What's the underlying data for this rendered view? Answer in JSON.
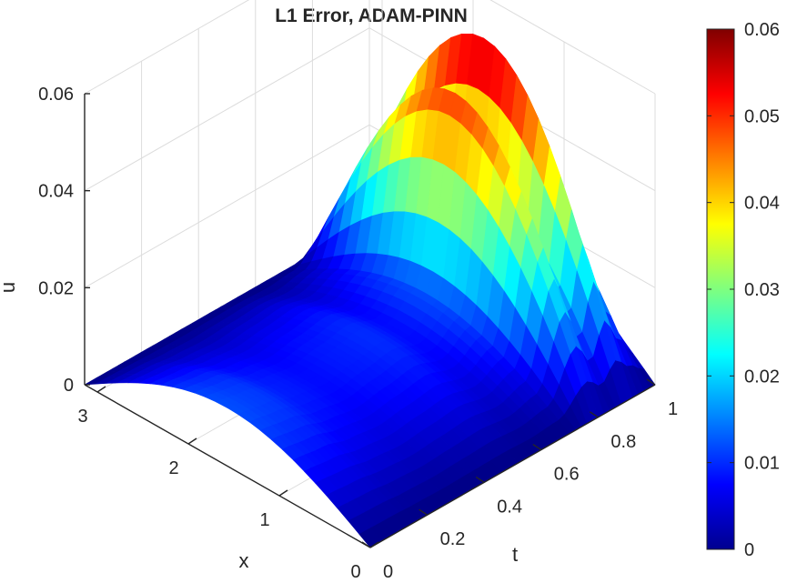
{
  "chart_data": {
    "type": "surface",
    "title": "L1 Error, ADAM-PINN",
    "xlabel": "t",
    "ylabel": "x",
    "zlabel": "u",
    "t_range": [
      0,
      1
    ],
    "x_range": [
      0,
      3.14
    ],
    "zlim": [
      0,
      0.06
    ],
    "t_ticks": [
      "0",
      "0.2",
      "0.4",
      "0.6",
      "0.8",
      "1"
    ],
    "x_ticks": [
      "0",
      "1",
      "2",
      "3"
    ],
    "z_ticks": [
      "0",
      "0.02",
      "0.04",
      "0.06"
    ],
    "colorbar_ticks": [
      "0",
      "0.01",
      "0.02",
      "0.03",
      "0.04",
      "0.05",
      "0.06"
    ],
    "colormap": "jet",
    "colorbar_location": "right",
    "grid": true,
    "peak_error": 0.058,
    "surface_profile": [
      {
        "t": 0.0,
        "amplitude": 0.012
      },
      {
        "t": 0.1,
        "amplitude": 0.011
      },
      {
        "t": 0.2,
        "amplitude": 0.009
      },
      {
        "t": 0.3,
        "amplitude": 0.008
      },
      {
        "t": 0.4,
        "amplitude": 0.009
      },
      {
        "t": 0.5,
        "amplitude": 0.01
      },
      {
        "t": 0.6,
        "amplitude": 0.008
      },
      {
        "t": 0.7,
        "amplitude": 0.012
      },
      {
        "t": 0.8,
        "amplitude": 0.05
      },
      {
        "t": 0.85,
        "amplitude": 0.03
      },
      {
        "t": 0.9,
        "amplitude": 0.058
      },
      {
        "t": 0.95,
        "amplitude": 0.035
      },
      {
        "t": 1.0,
        "amplitude": 0.016
      }
    ]
  }
}
